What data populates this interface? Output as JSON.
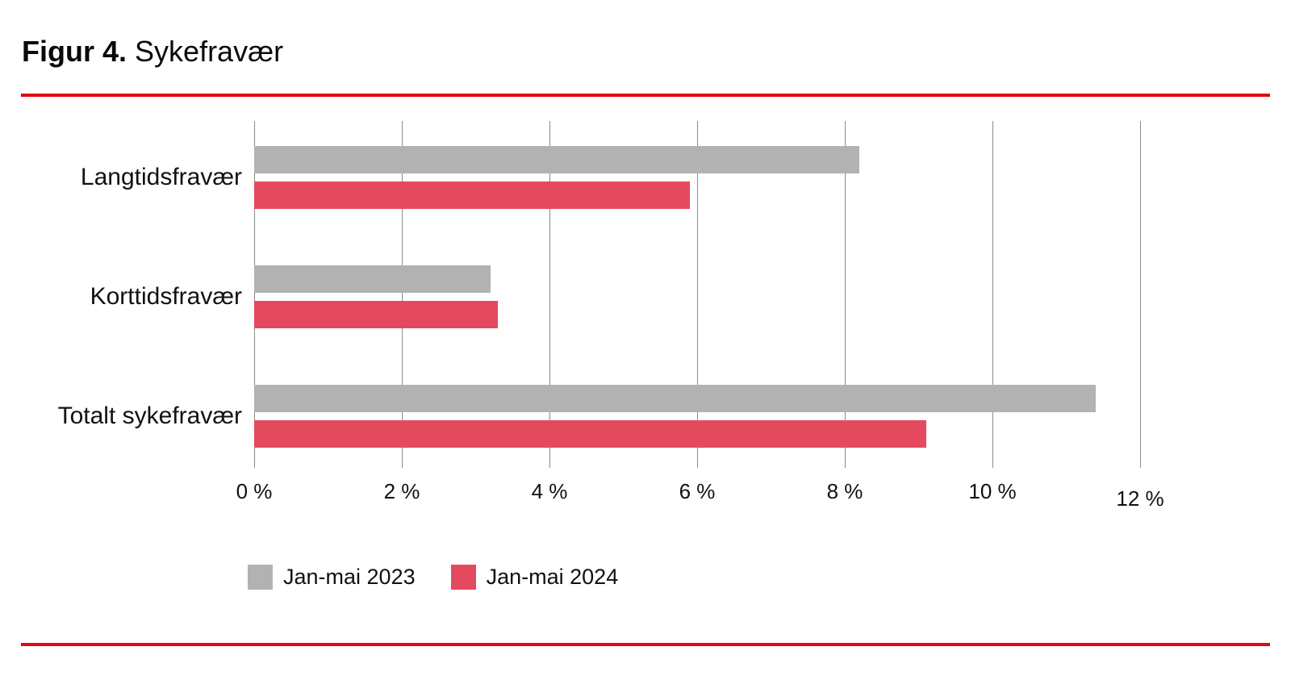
{
  "title": {
    "bold": "Figur 4.",
    "regular": "Sykefravær"
  },
  "chart_data": {
    "type": "bar",
    "orientation": "horizontal",
    "title": "Figur 4. Sykefravær",
    "categories": [
      "Langtidsfravær",
      "Korttidsfravær",
      "Totalt sykefravær"
    ],
    "series": [
      {
        "name": "Jan-mai 2023",
        "color": "#b2b2b2",
        "values": [
          8.2,
          3.2,
          11.4
        ]
      },
      {
        "name": "Jan-mai 2024",
        "color": "#e5495e",
        "values": [
          5.9,
          3.3,
          9.1
        ]
      }
    ],
    "xlim": [
      0,
      12
    ],
    "x_tick_labels": [
      "0 %",
      "2 %",
      "4 %",
      "6 %",
      "8 %",
      "10 %",
      "12 %"
    ],
    "unit": "%",
    "grid": "vertical",
    "legend_position": "bottom-left"
  },
  "colors": {
    "rule_red": "#e30613",
    "gridline": "#8a8a8a",
    "bar_gray": "#b2b2b2",
    "bar_red": "#e5495e",
    "text": "#111111"
  }
}
